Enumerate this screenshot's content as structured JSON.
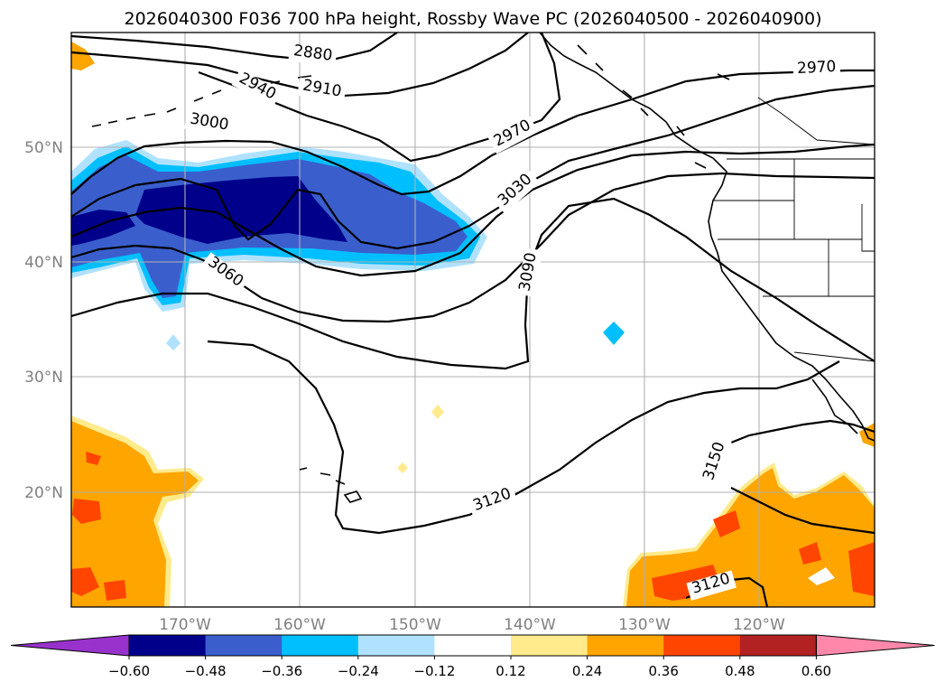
{
  "title": "2026040300 F036 700 hPa height, Rossby Wave PC (2026040500 - 2026040900)",
  "axes": {
    "lat_labels": [
      "50°N",
      "40°N",
      "30°N",
      "20°N"
    ],
    "lon_labels": [
      "170°W",
      "160°W",
      "150°W",
      "140°W",
      "130°W",
      "120°W"
    ]
  },
  "colorbar": {
    "ticks": [
      "−0.60",
      "−0.48",
      "−0.36",
      "−0.24",
      "−0.12",
      "0.12",
      "0.24",
      "0.36",
      "0.48",
      "0.60"
    ],
    "colors": [
      "#9932cc",
      "#00008b",
      "#3a5fcd",
      "#00bfff",
      "#b0e2ff",
      "#ffffff",
      "#ffeb8c",
      "#ffa500",
      "#ff4500",
      "#b22222",
      "#ff88aa"
    ]
  },
  "contour_labels": [
    "2880",
    "2910",
    "2940",
    "2970",
    "2970",
    "3000",
    "3030",
    "3060",
    "3090",
    "3120",
    "3120",
    "3150"
  ],
  "colors": {
    "dark_blue": "#00008b",
    "mid_blue": "#3a5fcd",
    "cyan": "#00bfff",
    "light_blue": "#b0e2ff",
    "light_yellow": "#ffeb8c",
    "orange": "#ffa500",
    "red_orange": "#ff4500"
  }
}
